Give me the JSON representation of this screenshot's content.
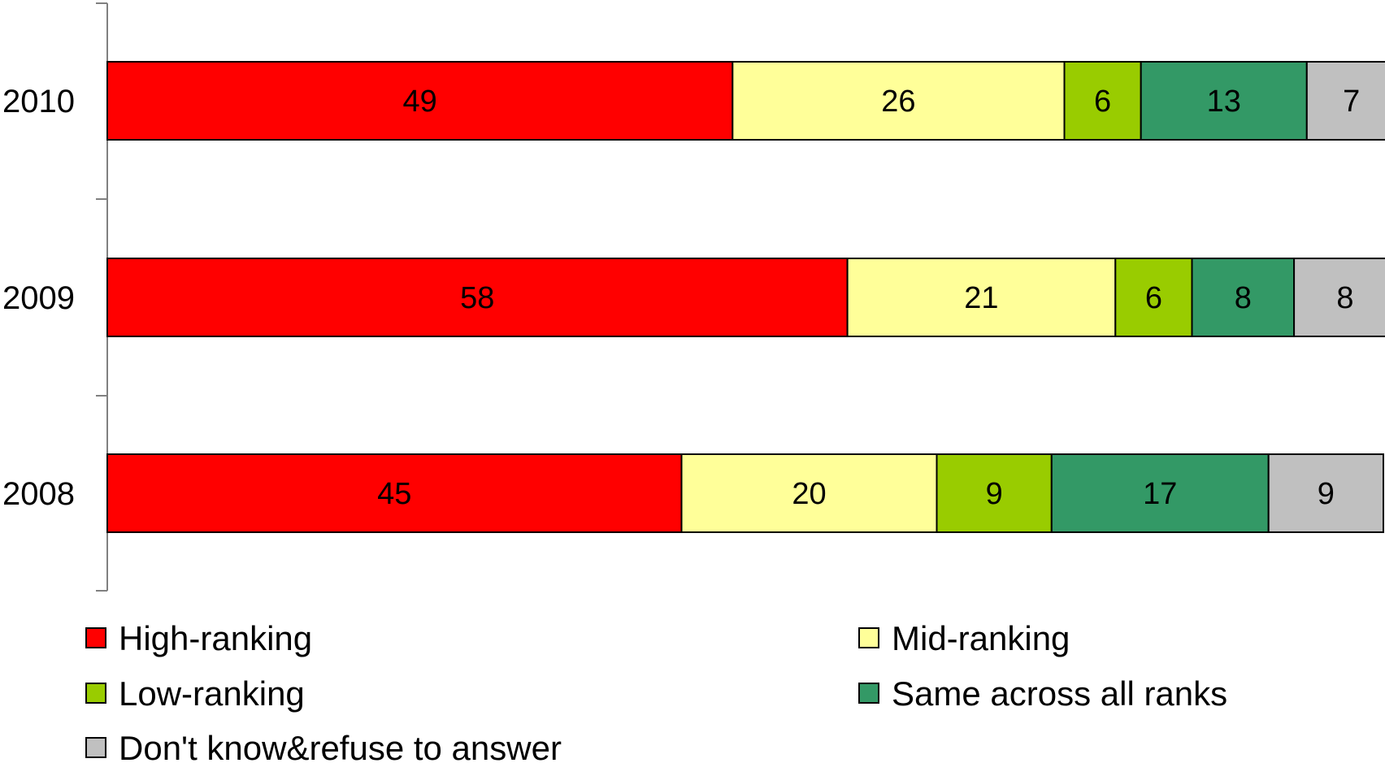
{
  "chart_data": {
    "type": "bar",
    "orientation": "horizontal",
    "stacked": true,
    "categories": [
      "2010",
      "2009",
      "2008"
    ],
    "series": [
      {
        "name": "High-ranking",
        "color": "#ff0000",
        "values": [
          49,
          58,
          45
        ]
      },
      {
        "name": "Mid-ranking",
        "color": "#ffff99",
        "values": [
          26,
          21,
          20
        ]
      },
      {
        "name": "Low-ranking",
        "color": "#99cc00",
        "values": [
          6,
          6,
          9
        ]
      },
      {
        "name": "Same across all ranks",
        "color": "#339966",
        "values": [
          13,
          8,
          17
        ]
      },
      {
        "name": "Don't know&refuse to answer",
        "color": "#c0c0c0",
        "values": [
          7,
          8,
          9
        ]
      }
    ],
    "xlim": [
      0,
      100
    ],
    "grid": false,
    "legend_position": "bottom"
  }
}
